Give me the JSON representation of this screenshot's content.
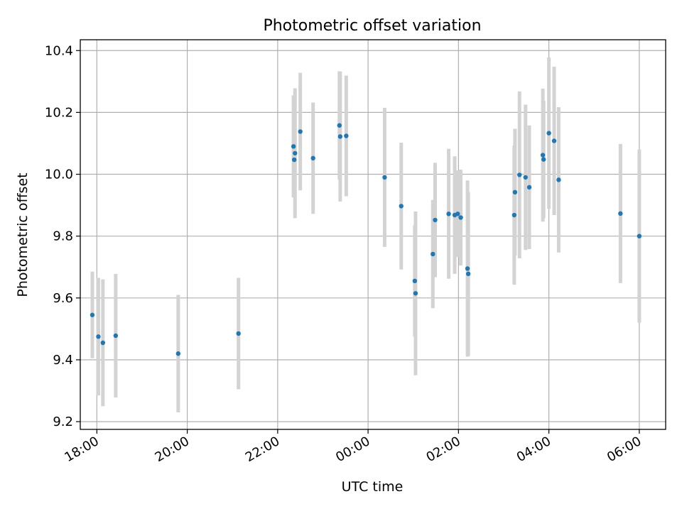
{
  "chart_data": {
    "type": "scatter",
    "title": "Photometric offset variation",
    "xlabel": "UTC time",
    "ylabel": "Photometric offset",
    "x_axis": {
      "kind": "time",
      "range": [
        "17:38",
        "06:35"
      ],
      "ticks": [
        "18:00",
        "20:00",
        "22:00",
        "00:00",
        "02:00",
        "04:00",
        "06:00"
      ]
    },
    "y_axis": {
      "range": [
        9.175,
        10.435
      ],
      "ticks": [
        9.2,
        9.4,
        9.6,
        9.8,
        10.0,
        10.2,
        10.4
      ],
      "tick_labels": [
        "9.2",
        "9.4",
        "9.6",
        "9.8",
        "10.0",
        "10.2",
        "10.4"
      ]
    },
    "grid": true,
    "colors": {
      "points": "#1f77b4",
      "errorbars": "#d3d3d3"
    },
    "series": [
      {
        "points": [
          {
            "x": "17:54",
            "y": 9.545,
            "err": 0.14
          },
          {
            "x": "18:02",
            "y": 9.475,
            "err": 0.19
          },
          {
            "x": "18:08",
            "y": 9.455,
            "err": 0.205
          },
          {
            "x": "18:25",
            "y": 9.478,
            "err": 0.2
          },
          {
            "x": "19:48",
            "y": 9.42,
            "err": 0.19
          },
          {
            "x": "21:08",
            "y": 9.485,
            "err": 0.18
          },
          {
            "x": "22:21",
            "y": 10.09,
            "err": 0.165
          },
          {
            "x": "22:22",
            "y": 10.047,
            "err": 0.12
          },
          {
            "x": "22:23",
            "y": 10.068,
            "err": 0.21
          },
          {
            "x": "22:30",
            "y": 10.138,
            "err": 0.19
          },
          {
            "x": "22:47",
            "y": 10.052,
            "err": 0.18
          },
          {
            "x": "23:22",
            "y": 10.158,
            "err": 0.175
          },
          {
            "x": "23:23",
            "y": 10.122,
            "err": 0.21
          },
          {
            "x": "23:31",
            "y": 10.124,
            "err": 0.195
          },
          {
            "x": "00:22",
            "y": 9.99,
            "err": 0.225
          },
          {
            "x": "00:44",
            "y": 9.897,
            "err": 0.205
          },
          {
            "x": "01:02",
            "y": 9.655,
            "err": 0.18
          },
          {
            "x": "01:03",
            "y": 9.615,
            "err": 0.265
          },
          {
            "x": "01:26",
            "y": 9.742,
            "err": 0.175
          },
          {
            "x": "01:29",
            "y": 9.852,
            "err": 0.185
          },
          {
            "x": "01:47",
            "y": 9.872,
            "err": 0.21
          },
          {
            "x": "01:55",
            "y": 9.868,
            "err": 0.19
          },
          {
            "x": "01:59",
            "y": 9.872,
            "err": 0.14
          },
          {
            "x": "02:03",
            "y": 9.86,
            "err": 0.155
          },
          {
            "x": "02:12",
            "y": 9.695,
            "err": 0.285
          },
          {
            "x": "02:13",
            "y": 9.678,
            "err": 0.265
          },
          {
            "x": "03:14",
            "y": 9.868,
            "err": 0.225
          },
          {
            "x": "03:15",
            "y": 9.942,
            "err": 0.205
          },
          {
            "x": "03:21",
            "y": 9.998,
            "err": 0.27
          },
          {
            "x": "03:29",
            "y": 9.99,
            "err": 0.235
          },
          {
            "x": "03:34",
            "y": 9.958,
            "err": 0.2
          },
          {
            "x": "03:52",
            "y": 10.062,
            "err": 0.215
          },
          {
            "x": "03:53",
            "y": 10.048,
            "err": 0.19
          },
          {
            "x": "04:00",
            "y": 10.133,
            "err": 0.245
          },
          {
            "x": "04:07",
            "y": 10.108,
            "err": 0.24
          },
          {
            "x": "04:13",
            "y": 9.982,
            "err": 0.235
          },
          {
            "x": "05:35",
            "y": 9.873,
            "err": 0.225
          },
          {
            "x": "06:00",
            "y": 9.8,
            "err": 0.28
          }
        ]
      }
    ]
  }
}
